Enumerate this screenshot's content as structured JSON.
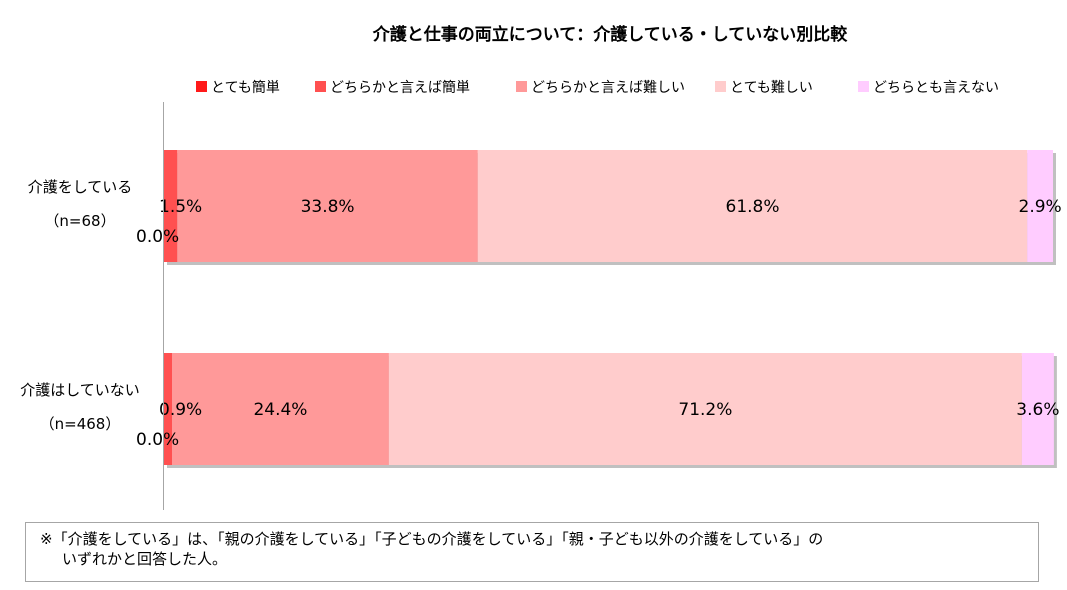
{
  "chart_data": {
    "type": "bar",
    "orientation": "horizontal",
    "stacked": true,
    "title": "介護と仕事の両立について：介護している・していない別比較",
    "categories": [
      {
        "label": "介護をしている",
        "sublabel": "（n=68）"
      },
      {
        "label": "介護はしていない",
        "sublabel": "（n=468）"
      }
    ],
    "series": [
      {
        "name": "とても簡単",
        "color": "#ff1a1a",
        "values": [
          0.0,
          0.0
        ],
        "labels": [
          "0.0%",
          "0.0%"
        ]
      },
      {
        "name": "どちらかと言えば簡単",
        "color": "#ff5050",
        "values": [
          1.5,
          0.9
        ],
        "labels": [
          "1.5%",
          "0.9%"
        ]
      },
      {
        "name": "どちらかと言えば難しい",
        "color": "#ff9999",
        "values": [
          33.8,
          24.4
        ],
        "labels": [
          "33.8%",
          "24.4%"
        ]
      },
      {
        "name": "とても難しい",
        "color": "#ffcccc",
        "values": [
          61.8,
          71.2
        ],
        "labels": [
          "61.8%",
          "71.2%"
        ]
      },
      {
        "name": "どちらとも言えない",
        "color": "#ffccff",
        "values": [
          2.9,
          3.6
        ],
        "labels": [
          "2.9%",
          "3.6%"
        ]
      }
    ],
    "xlim": [
      0,
      100
    ],
    "legend_position": "top",
    "grid": false
  },
  "note": {
    "line1": "※「介護をしている」は、「親の介護をしている」「子どもの介護をしている」「親・子ども以外の介護をしている」の",
    "line2": "いずれかと回答した人。"
  }
}
